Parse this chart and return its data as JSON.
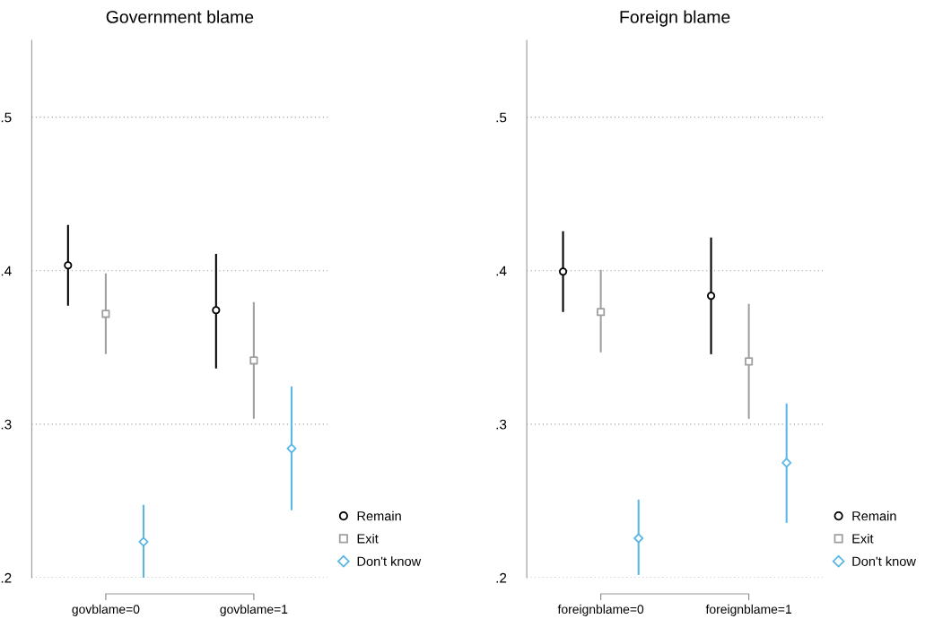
{
  "chart_data": [
    {
      "type": "scatter",
      "title": "Government blame",
      "categories": [
        "govblame=0",
        "govblame=1"
      ],
      "ylim": [
        0.2,
        0.55
      ],
      "yticks": [
        {
          "value": 0.2,
          "label": ".2"
        },
        {
          "value": 0.3,
          "label": ".3"
        },
        {
          "value": 0.4,
          "label": ".4"
        },
        {
          "value": 0.5,
          "label": ".5"
        }
      ],
      "grid": "y",
      "legend": "bottom right",
      "series": [
        {
          "name": "Remain",
          "color": "#000000",
          "marker": "circle",
          "values": [
            0.4035,
            0.3743
          ],
          "errors": [
            [
              0.3772,
              0.4298
            ],
            [
              0.3363,
              0.411
            ]
          ]
        },
        {
          "name": "Exit",
          "color": "#a0a0a0",
          "marker": "square",
          "values": [
            0.3719,
            0.3415
          ],
          "errors": [
            [
              0.3456,
              0.3982
            ],
            [
              0.3035,
              0.3795
            ]
          ]
        },
        {
          "name": "Don't know",
          "color": "#5bb8e6",
          "marker": "diamond",
          "values": [
            0.2234,
            0.2842
          ],
          "errors": [
            [
              0.2,
              0.2474
            ],
            [
              0.2439,
              0.3246
            ]
          ]
        }
      ]
    },
    {
      "type": "scatter",
      "title": "Foreign blame",
      "categories": [
        "foreignblame=0",
        "foreignblame=1"
      ],
      "ylim": [
        0.2,
        0.55
      ],
      "yticks": [
        {
          "value": 0.2,
          "label": ".2"
        },
        {
          "value": 0.3,
          "label": ".3"
        },
        {
          "value": 0.4,
          "label": ".4"
        },
        {
          "value": 0.5,
          "label": ".5"
        }
      ],
      "grid": "y",
      "legend": "bottom right",
      "series": [
        {
          "name": "Remain",
          "color": "#000000",
          "marker": "circle",
          "values": [
            0.3994,
            0.3836
          ],
          "errors": [
            [
              0.3731,
              0.4257
            ],
            [
              0.3456,
              0.4216
            ]
          ]
        },
        {
          "name": "Exit",
          "color": "#a0a0a0",
          "marker": "square",
          "values": [
            0.3731,
            0.3409
          ],
          "errors": [
            [
              0.3468,
              0.4006
            ],
            [
              0.3035,
              0.3784
            ]
          ]
        },
        {
          "name": "Don't know",
          "color": "#5bb8e6",
          "marker": "diamond",
          "values": [
            0.2257,
            0.2749
          ],
          "errors": [
            [
              0.2018,
              0.2509
            ],
            [
              0.2357,
              0.3135
            ]
          ]
        }
      ]
    }
  ]
}
